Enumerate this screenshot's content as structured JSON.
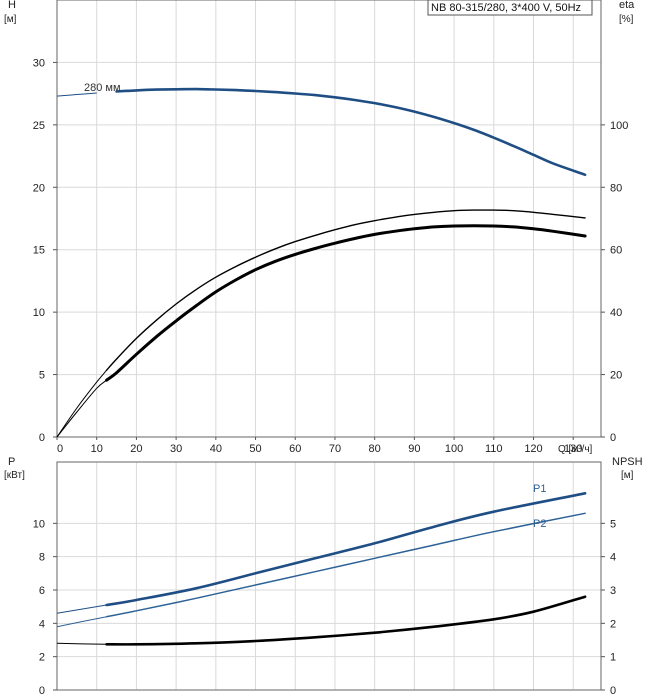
{
  "header": {
    "title": "NB 80-315/280, 3*400 V, 50Hz"
  },
  "chart_data": [
    {
      "type": "line",
      "yleft_label": "H",
      "yleft_unit": "[м]",
      "yright_label": "eta",
      "yright_unit": "[%]",
      "xlabel": "Q [м³/ч]",
      "xlim": [
        0,
        137
      ],
      "ylim_left": [
        0,
        35
      ],
      "ylim_right": [
        0,
        140
      ],
      "x_ticks": [
        0,
        10,
        20,
        30,
        40,
        50,
        60,
        70,
        80,
        90,
        100,
        110,
        120,
        130
      ],
      "x_tick_labels": [
        "0",
        "10",
        "20",
        "30",
        "40",
        "50",
        "60",
        "70",
        "80",
        "90",
        "100",
        "110",
        "120",
        "130"
      ],
      "yleft_ticks": [
        0,
        5,
        10,
        15,
        20,
        25,
        30
      ],
      "yleft_tick_labels": [
        "0",
        "5",
        "10",
        "15",
        "20",
        "25",
        "30"
      ],
      "yright_ticks": [
        0,
        20,
        40,
        60,
        80,
        100
      ],
      "yright_tick_labels": [
        "0",
        "20",
        "40",
        "60",
        "80",
        "100"
      ],
      "grid": true,
      "series": [
        {
          "name": "280 мм",
          "axis": "left",
          "color": "#1f4e85",
          "x": [
            0,
            5,
            10,
            15,
            20,
            25,
            30,
            35,
            40,
            45,
            50,
            55,
            60,
            65,
            70,
            75,
            80,
            85,
            90,
            95,
            100,
            105,
            110,
            115,
            120,
            125,
            133
          ],
          "y": [
            27.3,
            27.43,
            27.55,
            27.67,
            27.76,
            27.82,
            27.85,
            27.86,
            27.83,
            27.78,
            27.71,
            27.62,
            27.51,
            27.38,
            27.21,
            26.99,
            26.74,
            26.43,
            26.06,
            25.63,
            25.14,
            24.6,
            23.97,
            23.3,
            22.6,
            21.9,
            21.0
          ]
        },
        {
          "axis": "right",
          "color": "#000000",
          "x": [
            0,
            5,
            10,
            12.5,
            15,
            20,
            25,
            30,
            35,
            40,
            45,
            50,
            55,
            60,
            65,
            70,
            75,
            80,
            85,
            90,
            95,
            100,
            105,
            110,
            115,
            120,
            125,
            133
          ],
          "y": [
            0,
            9.3,
            17.6,
            21.4,
            25.0,
            31.6,
            37.4,
            42.6,
            47.2,
            51.2,
            54.6,
            57.6,
            60.3,
            62.6,
            64.6,
            66.4,
            68.0,
            69.3,
            70.4,
            71.3,
            72.0,
            72.5,
            72.7,
            72.7,
            72.5,
            72.0,
            71.3,
            70.2
          ]
        },
        {
          "axis": "right",
          "color": "#000000",
          "x": [
            0,
            5,
            10,
            12.5,
            15,
            20,
            25,
            30,
            35,
            40,
            45,
            50,
            55,
            60,
            65,
            70,
            75,
            80,
            85,
            90,
            95,
            100,
            105,
            110,
            115,
            120,
            125,
            133
          ],
          "y": [
            0,
            8.0,
            15.6,
            18.2,
            20.6,
            26.5,
            32.1,
            37.2,
            42.0,
            46.5,
            50.3,
            53.6,
            56.3,
            58.5,
            60.4,
            62.1,
            63.6,
            64.9,
            65.9,
            66.7,
            67.3,
            67.6,
            67.7,
            67.6,
            67.3,
            66.7,
            65.9,
            64.4
          ]
        }
      ]
    },
    {
      "type": "line",
      "yleft_label": "P",
      "yleft_unit": "[кВт]",
      "yright_label": "NPSH",
      "yright_unit": "[м]",
      "xlim": [
        0,
        137
      ],
      "ylim_left": [
        0,
        12
      ],
      "ylim_right": [
        0,
        6
      ],
      "yleft_ticks": [
        0,
        2,
        4,
        6,
        8,
        10
      ],
      "yleft_tick_labels": [
        "0",
        "2",
        "4",
        "6",
        "8",
        "10"
      ],
      "yright_ticks": [
        0,
        1,
        2,
        3,
        4,
        5
      ],
      "yright_tick_labels": [
        "0",
        "1",
        "2",
        "3",
        "4",
        "5"
      ],
      "grid": true,
      "series": [
        {
          "name": "P1",
          "axis": "left",
          "color": "#1f4e85",
          "x": [
            0,
            12.5,
            20,
            35,
            50,
            65,
            80,
            95,
            110,
            133
          ],
          "y": [
            4.6,
            5.1,
            5.4,
            6.1,
            7.0,
            7.9,
            8.8,
            9.8,
            10.7,
            11.8
          ]
        },
        {
          "name": "P2",
          "axis": "left",
          "color": "#2d6296",
          "x": [
            0,
            12.5,
            20,
            35,
            50,
            65,
            80,
            95,
            110,
            133
          ],
          "y": [
            3.8,
            4.4,
            4.75,
            5.5,
            6.3,
            7.1,
            7.9,
            8.7,
            9.5,
            10.6
          ]
        },
        {
          "axis": "right",
          "color": "#000000",
          "x": [
            0,
            12.5,
            20,
            35,
            50,
            65,
            80,
            95,
            110,
            120,
            133
          ],
          "y": [
            1.4,
            1.37,
            1.37,
            1.4,
            1.47,
            1.58,
            1.72,
            1.9,
            2.12,
            2.35,
            2.8
          ]
        }
      ]
    }
  ]
}
